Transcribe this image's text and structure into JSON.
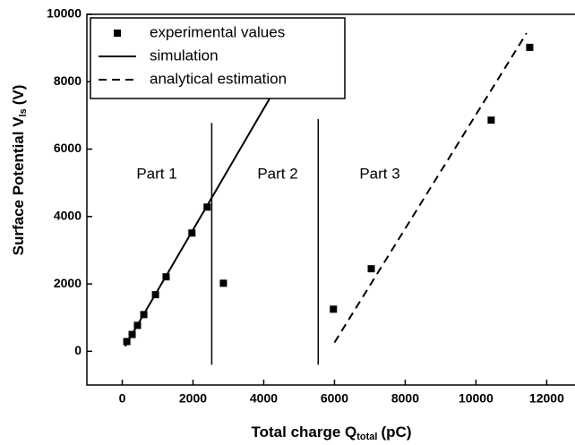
{
  "chart_data": {
    "type": "scatter",
    "x_label": {
      "text": "Total charge Q",
      "sub": "total",
      "unit": "(pC)"
    },
    "y_label": {
      "text": "Surface Potential V",
      "sub": "ls",
      "unit": "(V)"
    },
    "xlim": [
      -1000,
      12800
    ],
    "ylim": [
      -1000,
      10000
    ],
    "xticks": [
      0,
      2000,
      4000,
      6000,
      8000,
      10000,
      12000
    ],
    "yticks": [
      0,
      2000,
      4000,
      6000,
      8000,
      10000
    ],
    "series": [
      {
        "name": "experimental values",
        "color": "#000000",
        "mode": "markers",
        "x": [
          130,
          280,
          430,
          610,
          940,
          1240,
          1970,
          2400,
          2860,
          5970,
          7040,
          10430,
          11520
        ],
        "values": [
          290,
          500,
          770,
          1090,
          1680,
          2210,
          3510,
          4280,
          2020,
          1250,
          2450,
          6860,
          9020
        ]
      },
      {
        "name": "simulation",
        "color": "#000000",
        "mode": "line",
        "x": [
          80,
          5000
        ],
        "values": [
          150,
          9000
        ]
      },
      {
        "name": "analytical estimation",
        "color": "#000000",
        "mode": "dashed",
        "x": [
          6000,
          11430
        ],
        "values": [
          260,
          9440
        ]
      }
    ],
    "vlines": [
      {
        "x": 2530,
        "y": [
          -400,
          6780
        ]
      },
      {
        "x": 5540,
        "y": [
          -400,
          6890
        ]
      }
    ],
    "annotations": [
      "Part 1",
      "Part 2",
      "Part 3"
    ],
    "legend": "top-left"
  }
}
